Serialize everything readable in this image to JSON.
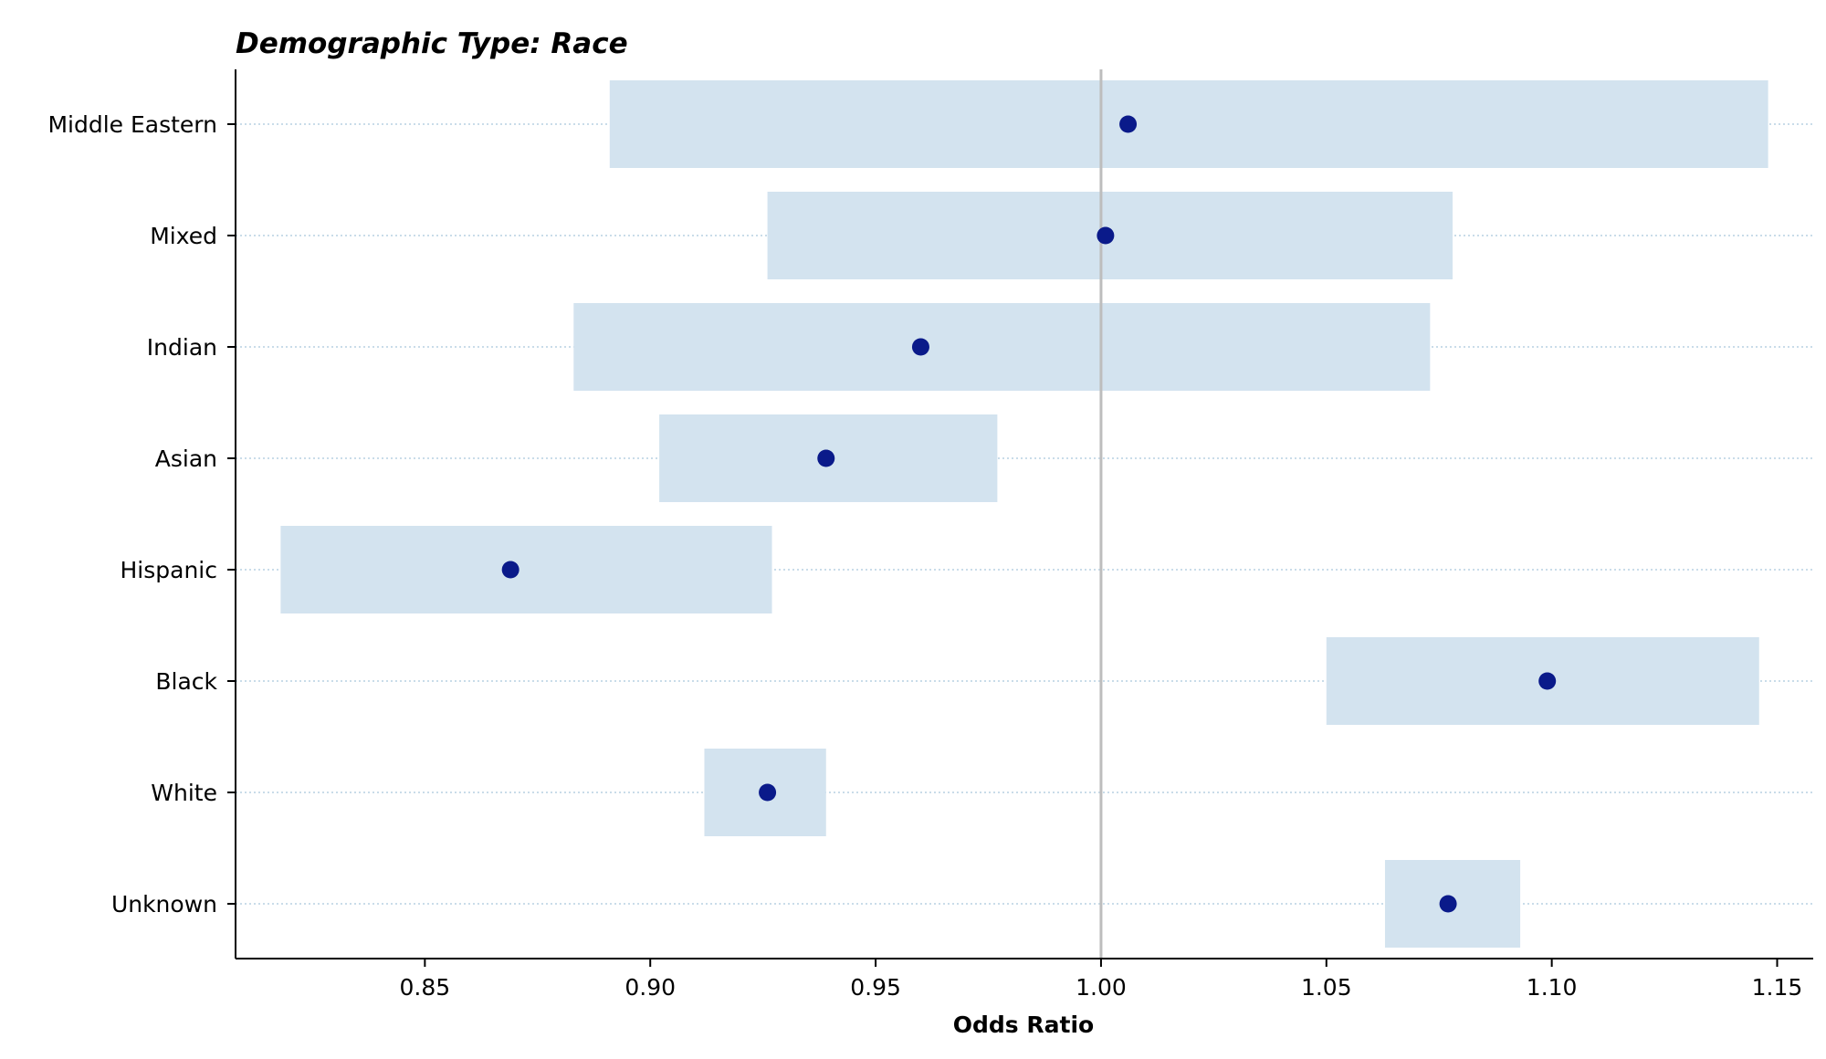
{
  "chart_data": {
    "type": "forest",
    "title": "Demographic Type: Race",
    "xlabel": "Odds Ratio",
    "ylabel": "",
    "xlim": [
      0.808,
      1.158
    ],
    "x_ticks": [
      0.85,
      0.9,
      0.95,
      1.0,
      1.05,
      1.1,
      1.15
    ],
    "x_tick_labels": [
      "0.85",
      "0.90",
      "0.95",
      "1.00",
      "1.05",
      "1.10",
      "1.15"
    ],
    "reference_line": 1.0,
    "grid": "horizontal dotted",
    "colors": {
      "ci_band": "#d3e3ef",
      "point": "#0a1a8a",
      "reference_line": "#bdbdbd",
      "grid": "#a9c8dc",
      "axis": "#000000"
    },
    "rows": [
      {
        "label": "Middle Eastern",
        "odds_ratio": 1.006,
        "ci_low": 0.891,
        "ci_high": 1.148
      },
      {
        "label": "Mixed",
        "odds_ratio": 1.001,
        "ci_low": 0.926,
        "ci_high": 1.078
      },
      {
        "label": "Indian",
        "odds_ratio": 0.96,
        "ci_low": 0.883,
        "ci_high": 1.073
      },
      {
        "label": "Asian",
        "odds_ratio": 0.939,
        "ci_low": 0.902,
        "ci_high": 0.977
      },
      {
        "label": "Hispanic",
        "odds_ratio": 0.869,
        "ci_low": 0.818,
        "ci_high": 0.927
      },
      {
        "label": "Black",
        "odds_ratio": 1.099,
        "ci_low": 1.05,
        "ci_high": 1.146
      },
      {
        "label": "White",
        "odds_ratio": 0.926,
        "ci_low": 0.912,
        "ci_high": 0.939
      },
      {
        "label": "Unknown",
        "odds_ratio": 1.077,
        "ci_low": 1.063,
        "ci_high": 1.093
      }
    ]
  }
}
